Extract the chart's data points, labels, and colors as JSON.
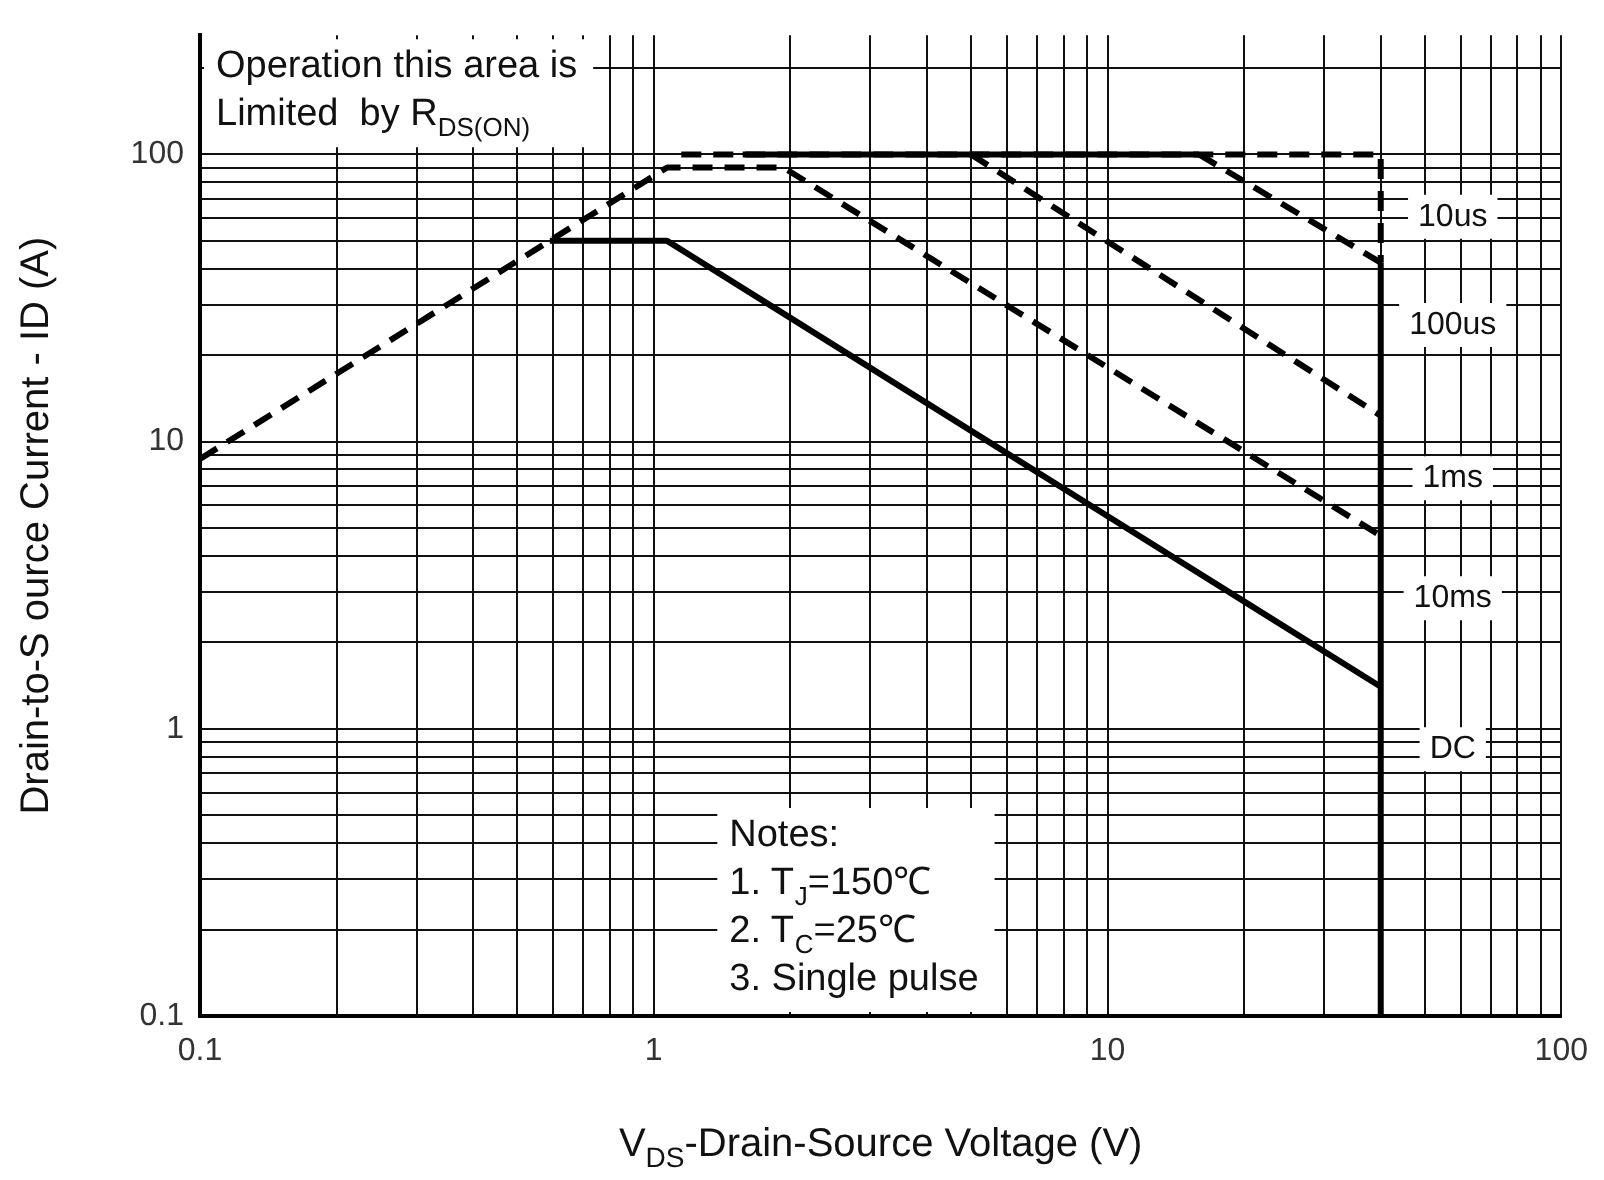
{
  "chart_data": {
    "type": "line",
    "xlabel": "V$_{DS}$-Drain-Source Voltage (V)",
    "ylabel": "Drain-to-S ource Current - ID (A)",
    "annotations": [
      "Operation this area is\nLimited  by R$_{DS(ON)}$",
      "Notes:\n1. T$_{J}$=150℃\n2. T$_{C}$=25℃\n3. Single pulse"
    ],
    "series": [
      {
        "name": "10us",
        "color": "#000000",
        "line_style": "dashed",
        "x": [
          1.15,
          40,
          40
        ],
        "values": [
          100,
          100,
          42
        ]
      },
      {
        "name": "100us",
        "color": "#000000",
        "line_style": "dashed",
        "x": [
          15.9,
          40
        ],
        "values": [
          100,
          42
        ]
      },
      {
        "color": "#000000",
        "line_style": "solid",
        "x": [
          1.57,
          15.9
        ],
        "values": [
          100,
          100
        ]
      },
      {
        "name": "1ms",
        "color": "#000000",
        "line_style": "dashed",
        "x": [
          5,
          40
        ],
        "values": [
          100,
          12.3
        ]
      },
      {
        "name": "10ms",
        "color": "#000000",
        "line_style": "dashed",
        "x": [
          0.1,
          1.07,
          1.93,
          40
        ],
        "values": [
          8.7,
          90,
          90,
          4.7
        ]
      },
      {
        "name": "DC",
        "color": "#000000",
        "line_style": "solid",
        "x": [
          0.59,
          1.07,
          40
        ],
        "values": [
          50,
          50,
          1.4
        ]
      },
      {
        "color": "#000000",
        "line_style": "solid",
        "x": [
          40,
          40
        ],
        "values": [
          0.1,
          42
        ]
      }
    ],
    "log": "xy",
    "marker": "none",
    "grid": true,
    "xlim": [
      0.1,
      100
    ],
    "xticks": [
      0.1,
      {
        "value": 0.2,
        "label": null
      },
      {
        "value": 0.3,
        "label": null
      },
      {
        "value": 0.4,
        "label": null
      },
      {
        "value": 0.5,
        "label": null
      },
      {
        "value": 0.6,
        "label": null
      },
      {
        "value": 0.7,
        "label": null
      },
      {
        "value": 0.8,
        "label": null
      },
      {
        "value": 0.9,
        "label": null
      },
      1,
      {
        "value": 2,
        "label": null
      },
      {
        "value": 3,
        "label": null
      },
      {
        "value": 4,
        "label": null
      },
      {
        "value": 5,
        "label": null
      },
      {
        "value": 6,
        "label": null
      },
      {
        "value": 7,
        "label": null
      },
      {
        "value": 8,
        "label": null
      },
      {
        "value": 9,
        "label": null
      },
      10,
      {
        "value": 20,
        "label": null
      },
      {
        "value": 30,
        "label": null
      },
      {
        "value": 40,
        "label": null
      },
      {
        "value": 50,
        "label": null
      },
      {
        "value": 60,
        "label": null
      },
      {
        "value": 70,
        "label": null
      },
      {
        "value": 80,
        "label": null
      },
      {
        "value": 90,
        "label": null
      },
      100
    ],
    "ylim": [
      0.1,
      260
    ],
    "yticks": [
      0.1,
      {
        "value": 0.2,
        "label": null
      },
      {
        "value": 0.3,
        "label": null
      },
      {
        "value": 0.4,
        "label": null
      },
      {
        "value": 0.5,
        "label": null
      },
      {
        "value": 0.6,
        "label": null
      },
      {
        "value": 0.7,
        "label": null
      },
      {
        "value": 0.8,
        "label": null
      },
      {
        "value": 0.9,
        "label": null
      },
      1,
      {
        "value": 2,
        "label": null
      },
      {
        "value": 3,
        "label": null
      },
      {
        "value": 4,
        "label": null
      },
      {
        "value": 5,
        "label": null
      },
      {
        "value": 6,
        "label": null
      },
      {
        "value": 7,
        "label": null
      },
      {
        "value": 8,
        "label": null
      },
      {
        "value": 9,
        "label": null
      },
      10,
      {
        "value": 20,
        "label": null
      },
      {
        "value": 30,
        "label": null
      },
      {
        "value": 40,
        "label": null
      },
      {
        "value": 50,
        "label": null
      },
      {
        "value": 60,
        "label": null
      },
      {
        "value": 70,
        "label": null
      },
      {
        "value": 80,
        "label": null
      },
      {
        "value": 90,
        "label": null
      },
      100,
      {
        "value": 200,
        "label": null
      }
    ]
  }
}
